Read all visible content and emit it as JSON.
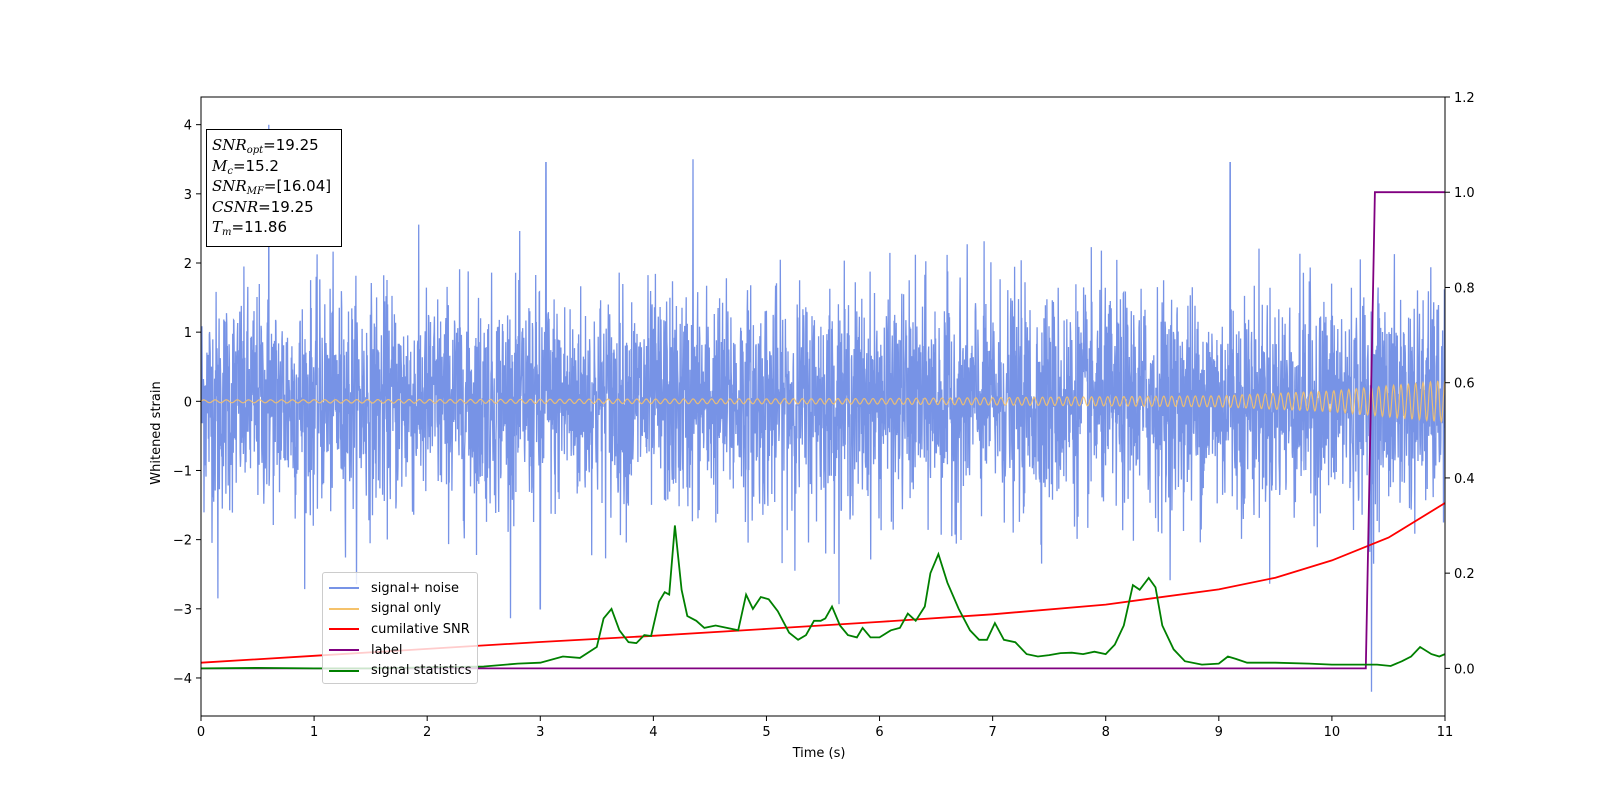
{
  "chart_data": {
    "type": "line",
    "xlabel": "Time (s)",
    "ylabel": "Whitened strain",
    "xlim": [
      0,
      11
    ],
    "ylim": [
      -4.55,
      4.4
    ],
    "y2lim": [
      -0.1,
      1.2
    ],
    "xticks": [
      "0",
      "1",
      "2",
      "3",
      "4",
      "5",
      "6",
      "7",
      "8",
      "9",
      "10",
      "11"
    ],
    "yticks": [
      "4",
      "3",
      "2",
      "1",
      "0",
      "−1",
      "−2",
      "−3",
      "−4"
    ],
    "y2ticks": [
      "1.2",
      "1.0",
      "0.8",
      "0.6",
      "0.4",
      "0.2",
      "0.0"
    ],
    "grid": false,
    "legend_placement": "lower-left",
    "annotation": {
      "lines": [
        {
          "sym": "SNR",
          "sub": "opt",
          "val": "=19.25"
        },
        {
          "sym": "M",
          "sub": "c",
          "val": "=15.2"
        },
        {
          "sym": "SNR",
          "sub": "MF",
          "val": "=[16.04]"
        },
        {
          "sym": "CSNR",
          "sub": "",
          "val": "=19.25"
        },
        {
          "sym": "T",
          "sub": "m",
          "val": "=11.86"
        }
      ]
    },
    "series": [
      {
        "name": "signal+ noise",
        "color": "#7793e6",
        "axis": "left",
        "style": "noise",
        "envelope": {
          "typical": 1.5,
          "peaks": [
            [
              0.6,
              4.0
            ],
            [
              3.05,
              3.45
            ],
            [
              4.35,
              3.5
            ],
            [
              9.1,
              3.45
            ],
            [
              10.35,
              -4.2
            ],
            [
              3.0,
              -3.0
            ],
            [
              0.15,
              -2.85
            ]
          ]
        }
      },
      {
        "name": "signal only",
        "color": "#f5c26b",
        "axis": "left",
        "style": "chirp",
        "amplitude": [
          [
            0,
            0.02
          ],
          [
            6,
            0.04
          ],
          [
            9,
            0.08
          ],
          [
            10,
            0.15
          ],
          [
            11,
            0.3
          ]
        ]
      },
      {
        "name": "cumilative SNR",
        "color": "#ff0000",
        "axis": "left",
        "x": [
          0,
          1,
          2,
          3,
          4,
          5,
          6,
          7,
          8,
          9,
          9.5,
          10,
          10.5,
          11
        ],
        "y": [
          -3.78,
          -3.68,
          -3.58,
          -3.48,
          -3.39,
          -3.29,
          -3.19,
          -3.08,
          -2.94,
          -2.72,
          -2.55,
          -2.3,
          -1.97,
          -1.47
        ]
      },
      {
        "name": "label",
        "color": "#800080",
        "axis": "right",
        "x": [
          0,
          10.3,
          10.38,
          11
        ],
        "y": [
          0.0,
          0.0,
          1.0,
          1.0
        ]
      },
      {
        "name": "signal statistics",
        "color": "#008000",
        "axis": "right",
        "x": [
          0,
          0.5,
          1,
          1.5,
          2,
          2.5,
          2.8,
          3.0,
          3.2,
          3.35,
          3.5,
          3.56,
          3.63,
          3.7,
          3.78,
          3.85,
          3.92,
          3.98,
          4.05,
          4.1,
          4.14,
          4.19,
          4.25,
          4.3,
          4.38,
          4.45,
          4.55,
          4.65,
          4.75,
          4.82,
          4.88,
          4.95,
          5.02,
          5.1,
          5.2,
          5.28,
          5.35,
          5.42,
          5.48,
          5.52,
          5.58,
          5.65,
          5.72,
          5.8,
          5.85,
          5.92,
          6.0,
          6.1,
          6.18,
          6.25,
          6.32,
          6.4,
          6.45,
          6.52,
          6.6,
          6.7,
          6.8,
          6.88,
          6.95,
          7.02,
          7.1,
          7.2,
          7.3,
          7.4,
          7.5,
          7.6,
          7.7,
          7.8,
          7.9,
          8.0,
          8.08,
          8.16,
          8.24,
          8.3,
          8.38,
          8.44,
          8.5,
          8.6,
          8.7,
          8.85,
          9.0,
          9.08,
          9.15,
          9.25,
          9.5,
          9.8,
          10.0,
          10.2,
          10.4,
          10.52,
          10.62,
          10.7,
          10.78,
          10.88,
          10.95,
          11.0
        ],
        "y": [
          0.0,
          0.001,
          0.0,
          0.0,
          0.002,
          0.004,
          0.01,
          0.012,
          0.025,
          0.022,
          0.045,
          0.105,
          0.125,
          0.08,
          0.055,
          0.053,
          0.07,
          0.068,
          0.14,
          0.16,
          0.155,
          0.3,
          0.165,
          0.11,
          0.1,
          0.085,
          0.09,
          0.085,
          0.08,
          0.155,
          0.125,
          0.15,
          0.145,
          0.12,
          0.075,
          0.06,
          0.07,
          0.1,
          0.1,
          0.105,
          0.13,
          0.09,
          0.07,
          0.065,
          0.085,
          0.065,
          0.065,
          0.08,
          0.085,
          0.115,
          0.1,
          0.13,
          0.2,
          0.24,
          0.18,
          0.125,
          0.08,
          0.06,
          0.06,
          0.095,
          0.06,
          0.055,
          0.03,
          0.025,
          0.028,
          0.032,
          0.033,
          0.03,
          0.035,
          0.03,
          0.05,
          0.09,
          0.175,
          0.165,
          0.19,
          0.17,
          0.09,
          0.04,
          0.015,
          0.008,
          0.01,
          0.025,
          0.02,
          0.012,
          0.012,
          0.01,
          0.008,
          0.008,
          0.008,
          0.005,
          0.015,
          0.025,
          0.045,
          0.03,
          0.025,
          0.03
        ]
      }
    ]
  }
}
